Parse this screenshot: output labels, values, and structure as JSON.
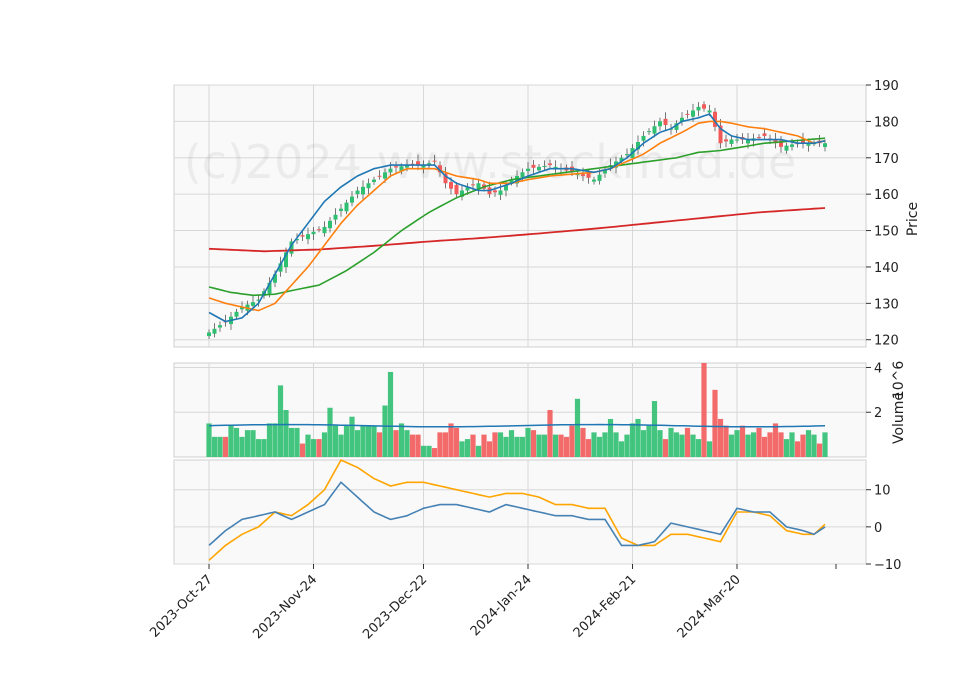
{
  "chart_data": {
    "type": "candlestick",
    "watermark": "(c)2024 www.stockmad.de",
    "dates": [
      "2023-Oct-27",
      "2023-Nov-24",
      "2023-Dec-22",
      "2024-Jan-24",
      "2024-Feb-21",
      "2024-Mar-20"
    ],
    "colors": {
      "up": "#2fbf71",
      "down": "#f25a5a",
      "ma1": "#1f77b4",
      "ma2": "#ff7f0e",
      "ma3": "#2ca02c",
      "ma4": "#d62728",
      "macd": "#4682b4",
      "signal": "#ffa500",
      "vol_ma": "#1f77b4"
    },
    "price_panel": {
      "ylabel": "Price",
      "ylim": [
        118,
        190
      ],
      "yticks": [
        "120",
        "130",
        "140",
        "150",
        "160",
        "170",
        "180",
        "190"
      ],
      "ytick_values": [
        120,
        130,
        140,
        150,
        160,
        170,
        180,
        190
      ],
      "close_anchors": [
        [
          0,
          122
        ],
        [
          3,
          125
        ],
        [
          6,
          129
        ],
        [
          9,
          131
        ],
        [
          12,
          138
        ],
        [
          15,
          147
        ],
        [
          18,
          149
        ],
        [
          21,
          151
        ],
        [
          24,
          156
        ],
        [
          27,
          161
        ],
        [
          30,
          164
        ],
        [
          33,
          167
        ],
        [
          36,
          168
        ],
        [
          39,
          168
        ],
        [
          41,
          169
        ],
        [
          43,
          163
        ],
        [
          45,
          160
        ],
        [
          47,
          162
        ],
        [
          49,
          163
        ],
        [
          51,
          160
        ],
        [
          53,
          161
        ],
        [
          55,
          164
        ],
        [
          58,
          167
        ],
        [
          62,
          168
        ],
        [
          66,
          166
        ],
        [
          70,
          164
        ],
        [
          73,
          168
        ],
        [
          76,
          171
        ],
        [
          79,
          176
        ],
        [
          82,
          180
        ],
        [
          84,
          178
        ],
        [
          86,
          181
        ],
        [
          89,
          184
        ],
        [
          91,
          183
        ],
        [
          93,
          174
        ],
        [
          95,
          175
        ],
        [
          98,
          175
        ],
        [
          101,
          176
        ],
        [
          104,
          173
        ],
        [
          107,
          174
        ],
        [
          110,
          174
        ],
        [
          113,
          174
        ]
      ],
      "ma1_anchors": [
        [
          0,
          127.5
        ],
        [
          3,
          125
        ],
        [
          6,
          126
        ],
        [
          9,
          130
        ],
        [
          12,
          138
        ],
        [
          15,
          146
        ],
        [
          18,
          152
        ],
        [
          21,
          158
        ],
        [
          24,
          162
        ],
        [
          27,
          165
        ],
        [
          30,
          167
        ],
        [
          33,
          168
        ],
        [
          36,
          168
        ],
        [
          39,
          168
        ],
        [
          41,
          168
        ],
        [
          43,
          165
        ],
        [
          45,
          163
        ],
        [
          47,
          162
        ],
        [
          49,
          161
        ],
        [
          51,
          161
        ],
        [
          53,
          162
        ],
        [
          55,
          163
        ],
        [
          58,
          165
        ],
        [
          62,
          167
        ],
        [
          66,
          167
        ],
        [
          70,
          166
        ],
        [
          73,
          167
        ],
        [
          76,
          170
        ],
        [
          79,
          174
        ],
        [
          82,
          177
        ],
        [
          84,
          178
        ],
        [
          86,
          180
        ],
        [
          89,
          181
        ],
        [
          91,
          182
        ],
        [
          93,
          178
        ],
        [
          95,
          176
        ],
        [
          98,
          175
        ],
        [
          101,
          175
        ],
        [
          104,
          175
        ],
        [
          107,
          174
        ],
        [
          110,
          174
        ],
        [
          113,
          175
        ]
      ],
      "ma2_anchors": [
        [
          0,
          131.5
        ],
        [
          3,
          130
        ],
        [
          6,
          129
        ],
        [
          9,
          128
        ],
        [
          12,
          130
        ],
        [
          15,
          135
        ],
        [
          18,
          140
        ],
        [
          21,
          146
        ],
        [
          24,
          152
        ],
        [
          27,
          157
        ],
        [
          30,
          161
        ],
        [
          33,
          165
        ],
        [
          36,
          167
        ],
        [
          39,
          167
        ],
        [
          41,
          167
        ],
        [
          43,
          166
        ],
        [
          45,
          165
        ],
        [
          47,
          164.5
        ],
        [
          49,
          164
        ],
        [
          51,
          163
        ],
        [
          53,
          163
        ],
        [
          55,
          163
        ],
        [
          58,
          164
        ],
        [
          62,
          165
        ],
        [
          66,
          165.5
        ],
        [
          70,
          166
        ],
        [
          73,
          167
        ],
        [
          76,
          169
        ],
        [
          79,
          171
        ],
        [
          82,
          174
        ],
        [
          84,
          175.5
        ],
        [
          86,
          177
        ],
        [
          89,
          179.5
        ],
        [
          91,
          180
        ],
        [
          93,
          180
        ],
        [
          95,
          179.5
        ],
        [
          98,
          178.5
        ],
        [
          101,
          178
        ],
        [
          104,
          177
        ],
        [
          107,
          176
        ],
        [
          110,
          174
        ],
        [
          113,
          175
        ]
      ],
      "ma3_anchors": [
        [
          0,
          134.5
        ],
        [
          4,
          133
        ],
        [
          8,
          132.2
        ],
        [
          12,
          132.5
        ],
        [
          15,
          133.5
        ],
        [
          20,
          135
        ],
        [
          25,
          139
        ],
        [
          30,
          144
        ],
        [
          35,
          150
        ],
        [
          40,
          155
        ],
        [
          45,
          159
        ],
        [
          50,
          162
        ],
        [
          55,
          164
        ],
        [
          60,
          165
        ],
        [
          65,
          166
        ],
        [
          70,
          167
        ],
        [
          75,
          168
        ],
        [
          80,
          169
        ],
        [
          85,
          170
        ],
        [
          89,
          171.5
        ],
        [
          93,
          172
        ],
        [
          97,
          173
        ],
        [
          101,
          174
        ],
        [
          105,
          174.5
        ],
        [
          109,
          175
        ],
        [
          113,
          175.5
        ]
      ],
      "ma4_anchors": [
        [
          0,
          145
        ],
        [
          10,
          144.3
        ],
        [
          20,
          144.8
        ],
        [
          30,
          145.8
        ],
        [
          40,
          147
        ],
        [
          50,
          148
        ],
        [
          60,
          149.2
        ],
        [
          70,
          150.5
        ],
        [
          80,
          152
        ],
        [
          90,
          153.5
        ],
        [
          100,
          155
        ],
        [
          110,
          156
        ],
        [
          113,
          156.3
        ]
      ]
    },
    "volume_panel": {
      "ylabel": "Volume",
      "unit": "10^6",
      "ylim": [
        0,
        4.2
      ],
      "yticks": [
        "2",
        "4"
      ],
      "ytick_values": [
        2,
        4
      ],
      "values": [
        1.5,
        0.9,
        0.9,
        0.9,
        1.4,
        1.3,
        0.9,
        1.2,
        1.2,
        0.8,
        0.8,
        1.5,
        1.5,
        3.2,
        2.1,
        1.3,
        1.3,
        0.6,
        1.0,
        0.8,
        0.8,
        1.1,
        2.2,
        1.4,
        1.0,
        1.4,
        1.8,
        1.2,
        1.4,
        1.4,
        1.4,
        1.1,
        2.3,
        3.8,
        1.2,
        1.5,
        1.2,
        1.0,
        1.0,
        0.5,
        0.5,
        0.4,
        1.1,
        1.1,
        1.5,
        1.3,
        0.7,
        0.8,
        1.0,
        0.5,
        1.0,
        0.7,
        1.1,
        1.1,
        0.9,
        1.2,
        0.9,
        0.9,
        1.3,
        1.2,
        1.0,
        1.0,
        2.1,
        1.0,
        1.0,
        0.9,
        1.4,
        2.6,
        1.3,
        0.8,
        1.1,
        0.9,
        1.1,
        1.7,
        1.1,
        0.7,
        1.0,
        1.5,
        1.7,
        1.2,
        1.4,
        2.5,
        1.2,
        0.8,
        1.3,
        1.1,
        1.0,
        1.3,
        1.0,
        0.8,
        4.2,
        0.7,
        3.0,
        1.7,
        1.4,
        1.0,
        1.2,
        1.4,
        1.0,
        1.1,
        1.3,
        0.9,
        1.1,
        1.5,
        1.1,
        0.8,
        1.1,
        0.7,
        1.0,
        1.2,
        1.0,
        0.6,
        1.1
      ],
      "ma": 1.4
    },
    "macd_panel": {
      "ylim": [
        -10,
        18
      ],
      "yticks": [
        "−10",
        "0",
        "10"
      ],
      "ytick_values": [
        -10,
        0,
        10
      ],
      "macd_anchors": [
        [
          0,
          -5
        ],
        [
          3,
          -1
        ],
        [
          6,
          2
        ],
        [
          9,
          3
        ],
        [
          12,
          4
        ],
        [
          15,
          2
        ],
        [
          18,
          4
        ],
        [
          21,
          6
        ],
        [
          24,
          12
        ],
        [
          27,
          8
        ],
        [
          30,
          4
        ],
        [
          33,
          2
        ],
        [
          36,
          3
        ],
        [
          39,
          5
        ],
        [
          42,
          6
        ],
        [
          45,
          6
        ],
        [
          48,
          5
        ],
        [
          51,
          4
        ],
        [
          54,
          6
        ],
        [
          57,
          5
        ],
        [
          60,
          4
        ],
        [
          63,
          3
        ],
        [
          66,
          3
        ],
        [
          69,
          2
        ],
        [
          72,
          2
        ],
        [
          75,
          -5
        ],
        [
          78,
          -5
        ],
        [
          81,
          -4
        ],
        [
          84,
          1
        ],
        [
          87,
          0
        ],
        [
          90,
          -1
        ],
        [
          93,
          -2
        ],
        [
          96,
          5
        ],
        [
          99,
          4
        ],
        [
          102,
          4
        ],
        [
          105,
          0
        ],
        [
          108,
          -1
        ],
        [
          110,
          -2
        ],
        [
          113,
          1
        ]
      ],
      "signal_anchors": [
        [
          0,
          -9
        ],
        [
          3,
          -5
        ],
        [
          6,
          -2
        ],
        [
          9,
          0
        ],
        [
          12,
          4
        ],
        [
          15,
          3
        ],
        [
          18,
          6
        ],
        [
          21,
          10
        ],
        [
          24,
          18
        ],
        [
          27,
          16
        ],
        [
          30,
          13
        ],
        [
          33,
          11
        ],
        [
          36,
          12
        ],
        [
          39,
          12
        ],
        [
          42,
          11
        ],
        [
          45,
          10
        ],
        [
          48,
          9
        ],
        [
          51,
          8
        ],
        [
          54,
          9
        ],
        [
          57,
          9
        ],
        [
          60,
          8
        ],
        [
          63,
          6
        ],
        [
          66,
          6
        ],
        [
          69,
          5
        ],
        [
          72,
          5
        ],
        [
          75,
          -3
        ],
        [
          78,
          -5
        ],
        [
          81,
          -5
        ],
        [
          84,
          -2
        ],
        [
          87,
          -2
        ],
        [
          90,
          -3
        ],
        [
          93,
          -4
        ],
        [
          96,
          4
        ],
        [
          99,
          4
        ],
        [
          102,
          3
        ],
        [
          105,
          -1
        ],
        [
          108,
          -2
        ],
        [
          110,
          -2
        ],
        [
          113,
          2
        ]
      ]
    }
  }
}
